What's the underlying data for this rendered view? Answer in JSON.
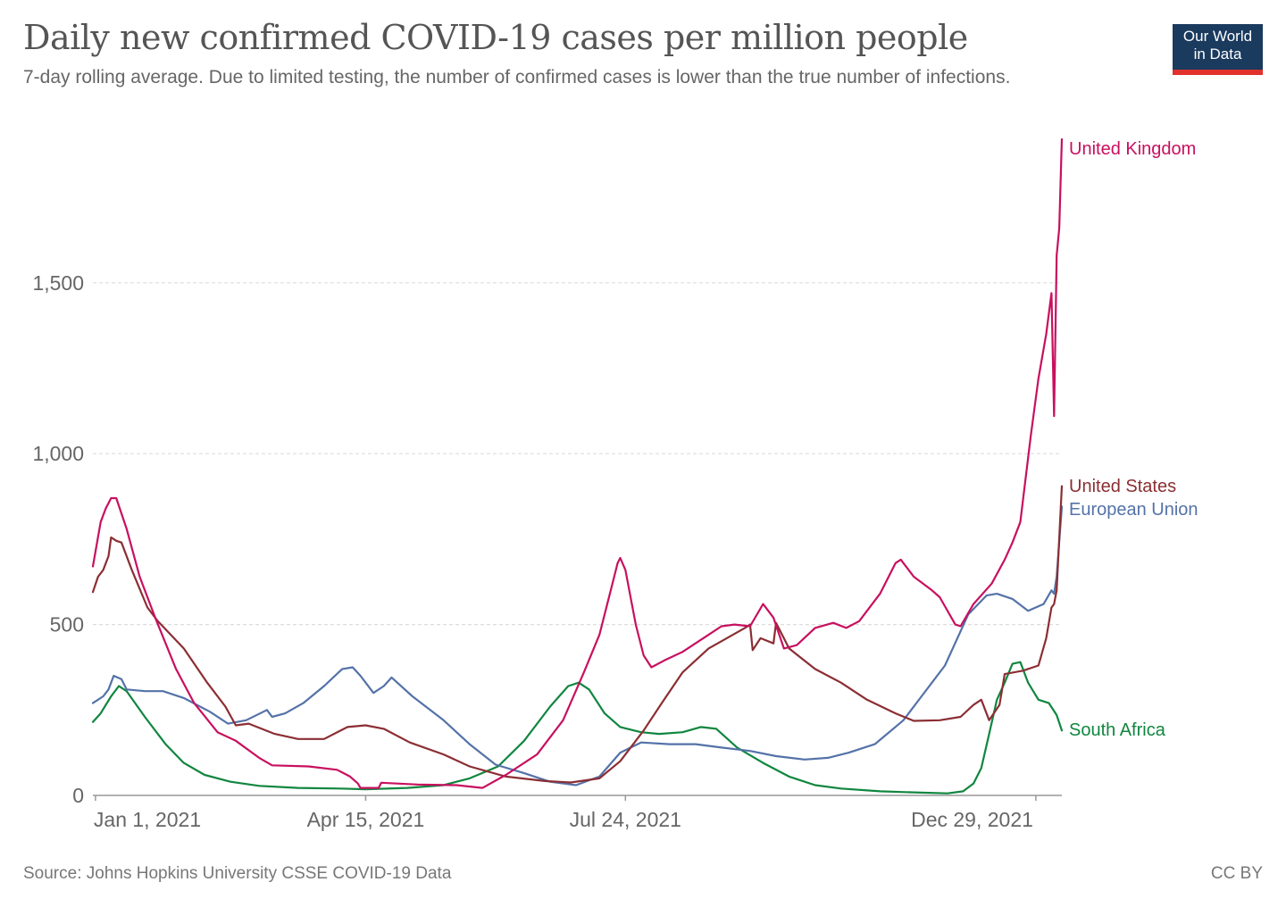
{
  "header": {
    "title": "Daily new confirmed COVID-19 cases per million people",
    "subtitle": "7-day rolling average. Due to limited testing, the number of confirmed cases is lower than the true number of infections.",
    "logo_line1": "Our World",
    "logo_line2": "in Data"
  },
  "footer": {
    "source": "Source: Johns Hopkins University CSSE COVID-19 Data",
    "license": "CC BY"
  },
  "colors": {
    "united_kingdom": "#c8105f",
    "united_states": "#8b2e33",
    "european_union": "#5472a8",
    "south_africa": "#10863f",
    "grid": "#dddddd",
    "axis": "#999999",
    "logo_bg": "#1a3a5e",
    "logo_bar": "#e0312b"
  },
  "chart_data": {
    "type": "line",
    "xlabel": "",
    "ylabel": "",
    "xlim": [
      "2020-12-31",
      "2022-01-08"
    ],
    "ylim": [
      0,
      1925
    ],
    "y_ticks": [
      0,
      500,
      1000,
      1500
    ],
    "y_tick_labels": [
      "0",
      "500",
      "1,000",
      "1,500"
    ],
    "x_ticks": [
      "2021-01-01",
      "2021-04-15",
      "2021-07-24",
      "2021-12-29"
    ],
    "x_tick_labels": [
      "Jan 1, 2021",
      "Apr 15, 2021",
      "Jul 24, 2021",
      "Dec 29, 2021"
    ],
    "grid": "horizontal dashed",
    "legend": "end-of-line labels on right",
    "series": [
      {
        "name": "United Kingdom",
        "color": "#c8105f",
        "points": [
          [
            "2020-12-31",
            670
          ],
          [
            "2021-01-03",
            800
          ],
          [
            "2021-01-05",
            840
          ],
          [
            "2021-01-07",
            870
          ],
          [
            "2021-01-09",
            870
          ],
          [
            "2021-01-13",
            780
          ],
          [
            "2021-01-18",
            640
          ],
          [
            "2021-01-24",
            520
          ],
          [
            "2021-02-01",
            370
          ],
          [
            "2021-02-08",
            270
          ],
          [
            "2021-02-17",
            185
          ],
          [
            "2021-02-24",
            160
          ],
          [
            "2021-03-05",
            110
          ],
          [
            "2021-03-10",
            88
          ],
          [
            "2021-03-24",
            85
          ],
          [
            "2021-04-04",
            75
          ],
          [
            "2021-04-09",
            55
          ],
          [
            "2021-04-12",
            35
          ],
          [
            "2021-04-13",
            22
          ],
          [
            "2021-04-20",
            22
          ],
          [
            "2021-04-21",
            37
          ],
          [
            "2021-05-05",
            32
          ],
          [
            "2021-05-20",
            30
          ],
          [
            "2021-05-30",
            22
          ],
          [
            "2021-06-08",
            60
          ],
          [
            "2021-06-20",
            120
          ],
          [
            "2021-06-30",
            220
          ],
          [
            "2021-07-08",
            360
          ],
          [
            "2021-07-14",
            470
          ],
          [
            "2021-07-19",
            620
          ],
          [
            "2021-07-21",
            680
          ],
          [
            "2021-07-22",
            695
          ],
          [
            "2021-07-24",
            660
          ],
          [
            "2021-07-28",
            500
          ],
          [
            "2021-07-31",
            410
          ],
          [
            "2021-08-03",
            375
          ],
          [
            "2021-08-08",
            395
          ],
          [
            "2021-08-15",
            420
          ],
          [
            "2021-08-25",
            470
          ],
          [
            "2021-08-30",
            495
          ],
          [
            "2021-09-04",
            500
          ],
          [
            "2021-09-10",
            495
          ],
          [
            "2021-09-15",
            560
          ],
          [
            "2021-09-19",
            520
          ],
          [
            "2021-09-23",
            430
          ],
          [
            "2021-09-28",
            440
          ],
          [
            "2021-10-05",
            490
          ],
          [
            "2021-10-12",
            505
          ],
          [
            "2021-10-17",
            490
          ],
          [
            "2021-10-22",
            510
          ],
          [
            "2021-10-30",
            590
          ],
          [
            "2021-11-05",
            680
          ],
          [
            "2021-11-07",
            690
          ],
          [
            "2021-11-12",
            640
          ],
          [
            "2021-11-19",
            600
          ],
          [
            "2021-11-22",
            580
          ],
          [
            "2021-11-28",
            500
          ],
          [
            "2021-11-30",
            495
          ],
          [
            "2021-12-05",
            560
          ],
          [
            "2021-12-12",
            620
          ],
          [
            "2021-12-17",
            690
          ],
          [
            "2021-12-20",
            740
          ],
          [
            "2021-12-23",
            800
          ],
          [
            "2021-12-27",
            1050
          ],
          [
            "2021-12-30",
            1220
          ],
          [
            "2022-01-02",
            1350
          ],
          [
            "2022-01-04",
            1470
          ],
          [
            "2022-01-05",
            1110
          ],
          [
            "2022-01-06",
            1580
          ],
          [
            "2022-01-07",
            1660
          ],
          [
            "2022-01-08",
            1920
          ]
        ]
      },
      {
        "name": "United States",
        "color": "#8b2e33",
        "points": [
          [
            "2020-12-31",
            595
          ],
          [
            "2021-01-02",
            640
          ],
          [
            "2021-01-04",
            660
          ],
          [
            "2021-01-06",
            700
          ],
          [
            "2021-01-07",
            755
          ],
          [
            "2021-01-09",
            745
          ],
          [
            "2021-01-11",
            740
          ],
          [
            "2021-01-15",
            660
          ],
          [
            "2021-01-21",
            550
          ],
          [
            "2021-01-25",
            510
          ],
          [
            "2021-02-04",
            430
          ],
          [
            "2021-02-13",
            330
          ],
          [
            "2021-02-20",
            260
          ],
          [
            "2021-02-24",
            205
          ],
          [
            "2021-03-01",
            210
          ],
          [
            "2021-03-11",
            180
          ],
          [
            "2021-03-20",
            165
          ],
          [
            "2021-03-30",
            165
          ],
          [
            "2021-04-08",
            200
          ],
          [
            "2021-04-15",
            205
          ],
          [
            "2021-04-22",
            195
          ],
          [
            "2021-05-02",
            155
          ],
          [
            "2021-05-15",
            120
          ],
          [
            "2021-05-25",
            85
          ],
          [
            "2021-06-08",
            55
          ],
          [
            "2021-06-23",
            42
          ],
          [
            "2021-07-03",
            38
          ],
          [
            "2021-07-14",
            50
          ],
          [
            "2021-07-22",
            100
          ],
          [
            "2021-07-31",
            190
          ],
          [
            "2021-08-07",
            270
          ],
          [
            "2021-08-15",
            360
          ],
          [
            "2021-08-25",
            430
          ],
          [
            "2021-09-01",
            460
          ],
          [
            "2021-09-08",
            490
          ],
          [
            "2021-09-10",
            500
          ],
          [
            "2021-09-11",
            425
          ],
          [
            "2021-09-14",
            460
          ],
          [
            "2021-09-19",
            445
          ],
          [
            "2021-09-20",
            505
          ],
          [
            "2021-09-25",
            430
          ],
          [
            "2021-10-05",
            370
          ],
          [
            "2021-10-15",
            330
          ],
          [
            "2021-10-25",
            280
          ],
          [
            "2021-11-05",
            240
          ],
          [
            "2021-11-12",
            218
          ],
          [
            "2021-11-22",
            220
          ],
          [
            "2021-11-30",
            230
          ],
          [
            "2021-12-05",
            265
          ],
          [
            "2021-12-08",
            280
          ],
          [
            "2021-12-11",
            220
          ],
          [
            "2021-12-15",
            265
          ],
          [
            "2021-12-17",
            355
          ],
          [
            "2021-12-24",
            365
          ],
          [
            "2021-12-30",
            380
          ],
          [
            "2022-01-02",
            460
          ],
          [
            "2022-01-04",
            550
          ],
          [
            "2022-01-05",
            560
          ],
          [
            "2022-01-06",
            600
          ],
          [
            "2022-01-08",
            905
          ]
        ]
      },
      {
        "name": "European Union",
        "color": "#5472a8",
        "points": [
          [
            "2020-12-31",
            270
          ],
          [
            "2021-01-04",
            290
          ],
          [
            "2021-01-06",
            310
          ],
          [
            "2021-01-08",
            350
          ],
          [
            "2021-01-11",
            340
          ],
          [
            "2021-01-13",
            310
          ],
          [
            "2021-01-20",
            305
          ],
          [
            "2021-01-27",
            305
          ],
          [
            "2021-02-04",
            285
          ],
          [
            "2021-02-14",
            245
          ],
          [
            "2021-02-21",
            210
          ],
          [
            "2021-02-28",
            220
          ],
          [
            "2021-03-08",
            250
          ],
          [
            "2021-03-10",
            230
          ],
          [
            "2021-03-15",
            240
          ],
          [
            "2021-03-22",
            270
          ],
          [
            "2021-03-30",
            320
          ],
          [
            "2021-04-06",
            370
          ],
          [
            "2021-04-10",
            375
          ],
          [
            "2021-04-13",
            350
          ],
          [
            "2021-04-18",
            300
          ],
          [
            "2021-04-22",
            320
          ],
          [
            "2021-04-25",
            345
          ],
          [
            "2021-05-03",
            290
          ],
          [
            "2021-05-15",
            220
          ],
          [
            "2021-05-25",
            150
          ],
          [
            "2021-06-04",
            90
          ],
          [
            "2021-06-15",
            65
          ],
          [
            "2021-06-25",
            40
          ],
          [
            "2021-07-05",
            30
          ],
          [
            "2021-07-14",
            55
          ],
          [
            "2021-07-22",
            125
          ],
          [
            "2021-07-30",
            155
          ],
          [
            "2021-08-10",
            150
          ],
          [
            "2021-08-20",
            150
          ],
          [
            "2021-08-30",
            140
          ],
          [
            "2021-09-10",
            130
          ],
          [
            "2021-09-20",
            115
          ],
          [
            "2021-10-01",
            105
          ],
          [
            "2021-10-10",
            110
          ],
          [
            "2021-10-18",
            125
          ],
          [
            "2021-10-28",
            150
          ],
          [
            "2021-11-08",
            220
          ],
          [
            "2021-11-15",
            290
          ],
          [
            "2021-11-24",
            380
          ],
          [
            "2021-12-03",
            530
          ],
          [
            "2021-12-10",
            585
          ],
          [
            "2021-12-14",
            590
          ],
          [
            "2021-12-20",
            575
          ],
          [
            "2021-12-26",
            540
          ],
          [
            "2022-01-01",
            560
          ],
          [
            "2022-01-04",
            600
          ],
          [
            "2022-01-05",
            590
          ],
          [
            "2022-01-06",
            640
          ],
          [
            "2022-01-08",
            845
          ]
        ]
      },
      {
        "name": "South Africa",
        "color": "#10863f",
        "points": [
          [
            "2020-12-31",
            215
          ],
          [
            "2021-01-03",
            240
          ],
          [
            "2021-01-07",
            290
          ],
          [
            "2021-01-10",
            320
          ],
          [
            "2021-01-13",
            305
          ],
          [
            "2021-01-20",
            230
          ],
          [
            "2021-01-28",
            150
          ],
          [
            "2021-02-04",
            95
          ],
          [
            "2021-02-12",
            60
          ],
          [
            "2021-02-22",
            40
          ],
          [
            "2021-03-05",
            28
          ],
          [
            "2021-03-20",
            22
          ],
          [
            "2021-04-05",
            20
          ],
          [
            "2021-04-15",
            18
          ],
          [
            "2021-05-01",
            22
          ],
          [
            "2021-05-15",
            30
          ],
          [
            "2021-05-25",
            50
          ],
          [
            "2021-06-05",
            85
          ],
          [
            "2021-06-15",
            160
          ],
          [
            "2021-06-25",
            260
          ],
          [
            "2021-07-02",
            320
          ],
          [
            "2021-07-06",
            330
          ],
          [
            "2021-07-10",
            310
          ],
          [
            "2021-07-16",
            240
          ],
          [
            "2021-07-22",
            200
          ],
          [
            "2021-07-30",
            185
          ],
          [
            "2021-08-06",
            180
          ],
          [
            "2021-08-15",
            185
          ],
          [
            "2021-08-22",
            200
          ],
          [
            "2021-08-28",
            195
          ],
          [
            "2021-09-05",
            140
          ],
          [
            "2021-09-15",
            95
          ],
          [
            "2021-09-25",
            55
          ],
          [
            "2021-10-05",
            30
          ],
          [
            "2021-10-15",
            20
          ],
          [
            "2021-10-30",
            12
          ],
          [
            "2021-11-15",
            8
          ],
          [
            "2021-11-25",
            6
          ],
          [
            "2021-12-01",
            12
          ],
          [
            "2021-12-05",
            35
          ],
          [
            "2021-12-08",
            80
          ],
          [
            "2021-12-11",
            180
          ],
          [
            "2021-12-14",
            280
          ],
          [
            "2021-12-17",
            330
          ],
          [
            "2021-12-20",
            385
          ],
          [
            "2021-12-23",
            390
          ],
          [
            "2021-12-26",
            330
          ],
          [
            "2021-12-30",
            280
          ],
          [
            "2022-01-03",
            270
          ],
          [
            "2022-01-06",
            235
          ],
          [
            "2022-01-08",
            190
          ]
        ]
      }
    ]
  }
}
